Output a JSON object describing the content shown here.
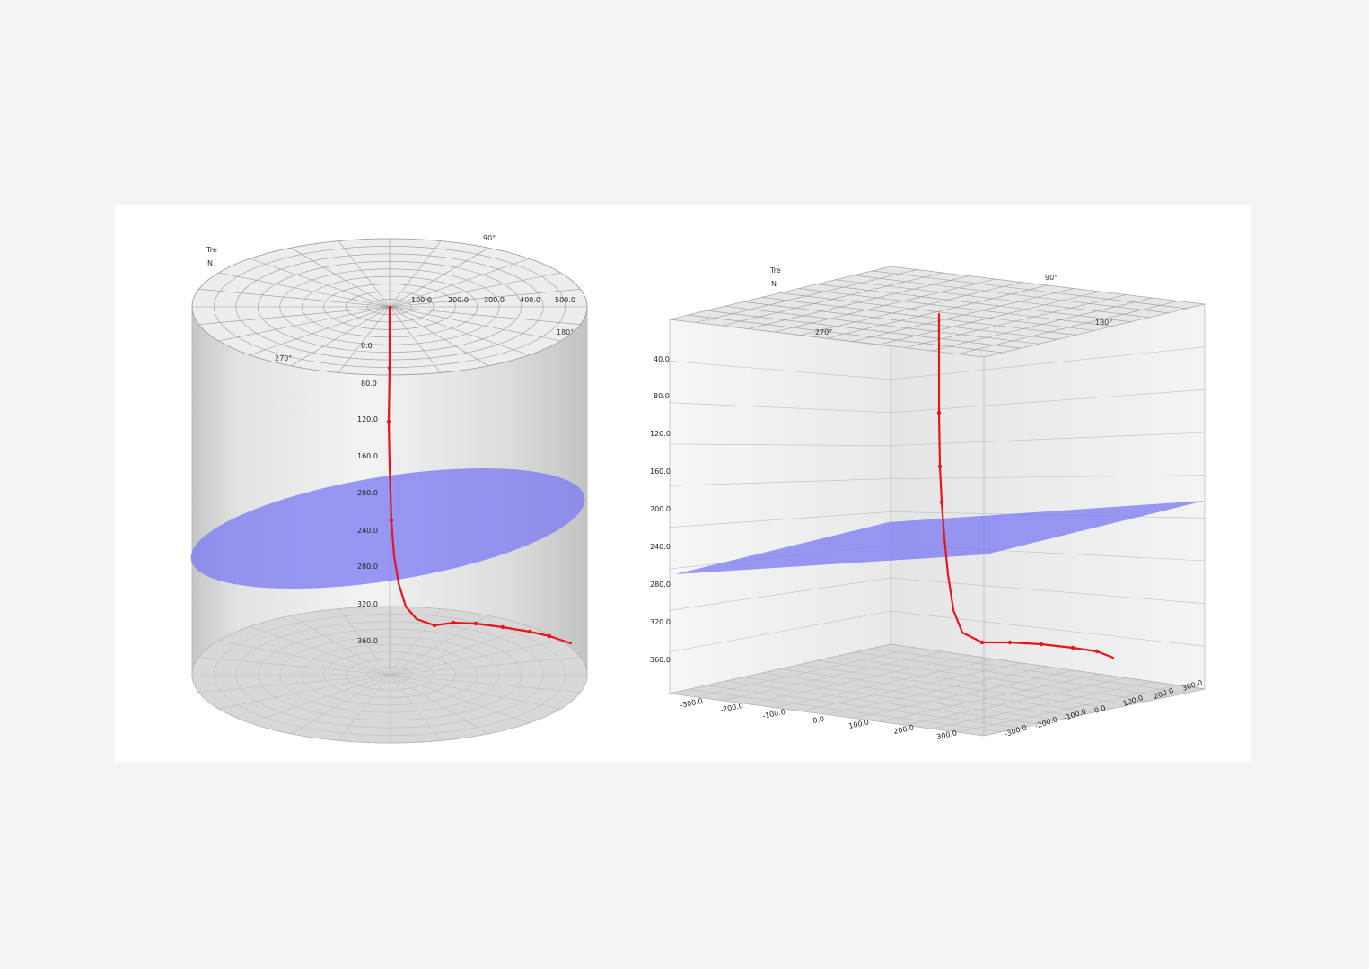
{
  "colors": {
    "page_background": "#f4f4f4",
    "panel_background": "#ffffff",
    "well_trace": "#e8141b",
    "plane_fill": "#7e7cf3",
    "cylinder_light": "#f2f2f2",
    "cylinder_dark": "#c9c9c9",
    "grid": "#9a9a9a"
  },
  "cylinder_view": {
    "direction_labels": [
      "Tre",
      "N",
      "90°",
      "270°",
      "180°"
    ],
    "radial_tick_labels": [
      "100.0",
      "200.0",
      "300.0",
      "400.0",
      "500.0"
    ],
    "depth_tick_labels": [
      "0.0",
      "80.0",
      "120.0",
      "160.0",
      "200.0",
      "240.0",
      "280.0",
      "320.0",
      "360.0"
    ]
  },
  "box_view": {
    "direction_labels": [
      "Tre",
      "N",
      "90°",
      "270°",
      "180°"
    ],
    "depth_tick_labels": [
      "40.0",
      "80.0",
      "120.0",
      "160.0",
      "200.0",
      "240.0",
      "280.0",
      "320.0",
      "360.0"
    ],
    "front_axis_labels": [
      "-300.0",
      "-200.0",
      "-100.0",
      "0.0",
      "100.0",
      "200.0",
      "300.0"
    ],
    "right_axis_labels": [
      "-300.0",
      "-200.0",
      "-100.0",
      "0.0",
      "100.0",
      "200.0",
      "300.0"
    ]
  }
}
